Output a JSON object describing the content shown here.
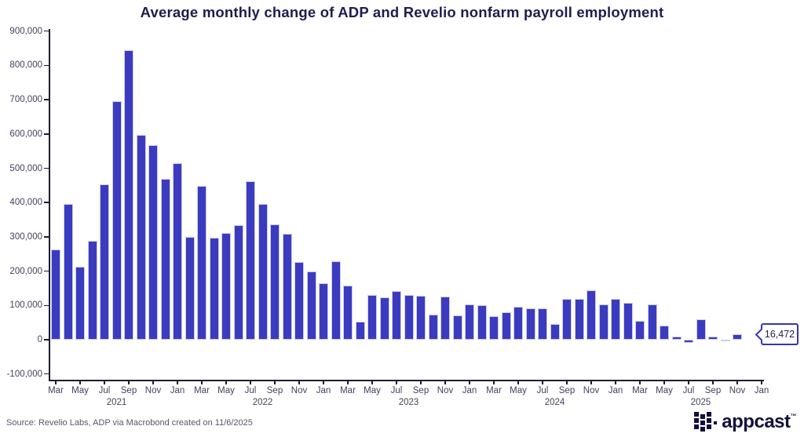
{
  "title": "Average monthly change of ADP and Revelio nonfarm payroll employment",
  "source_note": "Source: Revelio Labs, ADP via Macrobond created on 11/6/2025",
  "logo": {
    "text": "appcast",
    "trademark": "™",
    "icon": "appcast-squares-icon"
  },
  "colors": {
    "bar": "#3b3bc0",
    "bar_edge": "#cbcbef",
    "axis": "#1c1c33",
    "title_text": "#1d1d4f",
    "tick_text": "#42425f",
    "callout_border": "#3535ae"
  },
  "chart_data": {
    "type": "bar",
    "title": "Average monthly change of ADP and Revelio nonfarm payroll employment",
    "xlabel": "",
    "ylabel": "",
    "ylim": [
      -100000,
      900000
    ],
    "grid": false,
    "legend": "none",
    "y_ticks": [
      {
        "v": 900000,
        "label": "900,000"
      },
      {
        "v": 800000,
        "label": "800,000"
      },
      {
        "v": 700000,
        "label": "700,000"
      },
      {
        "v": 600000,
        "label": "600,000"
      },
      {
        "v": 500000,
        "label": "500,000"
      },
      {
        "v": 400000,
        "label": "400,000"
      },
      {
        "v": 300000,
        "label": "300,000"
      },
      {
        "v": 200000,
        "label": "200,000"
      },
      {
        "v": 100000,
        "label": "100,000"
      },
      {
        "v": 0,
        "label": "0"
      },
      {
        "v": -100000,
        "label": "-100,000"
      }
    ],
    "x_tick_every_n_months": 2,
    "final_tick_label": "Jan",
    "year_labels": [
      {
        "label": "2021",
        "month_index": 5
      },
      {
        "label": "2022",
        "month_index": 17
      },
      {
        "label": "2023",
        "month_index": 29
      },
      {
        "label": "2024",
        "month_index": 41
      },
      {
        "label": "2025",
        "month_index": 53
      }
    ],
    "categories": [
      "Mar 2021",
      "Apr 2021",
      "May 2021",
      "Jun 2021",
      "Jul 2021",
      "Aug 2021",
      "Sep 2021",
      "Oct 2021",
      "Nov 2021",
      "Dec 2021",
      "Jan 2022",
      "Feb 2022",
      "Mar 2022",
      "Apr 2022",
      "May 2022",
      "Jun 2022",
      "Jul 2022",
      "Aug 2022",
      "Sep 2022",
      "Oct 2022",
      "Nov 2022",
      "Dec 2022",
      "Jan 2023",
      "Feb 2023",
      "Mar 2023",
      "Apr 2023",
      "May 2023",
      "Jun 2023",
      "Jul 2023",
      "Aug 2023",
      "Sep 2023",
      "Oct 2023",
      "Nov 2023",
      "Dec 2023",
      "Jan 2024",
      "Feb 2024",
      "Mar 2024",
      "Apr 2024",
      "May 2024",
      "Jun 2024",
      "Jul 2024",
      "Aug 2024",
      "Sep 2024",
      "Oct 2024",
      "Nov 2024",
      "Dec 2024",
      "Jan 2025",
      "Feb 2025",
      "Mar 2025",
      "Apr 2025",
      "May 2025",
      "Jun 2025",
      "Jul 2025",
      "Aug 2025",
      "Sep 2025",
      "Oct 2025",
      "Nov 2025"
    ],
    "values": [
      263000,
      396000,
      212000,
      288000,
      452000,
      696000,
      845000,
      598000,
      568000,
      468000,
      516000,
      300000,
      449000,
      297000,
      312000,
      334000,
      462000,
      395000,
      336000,
      309000,
      227000,
      200000,
      165000,
      228000,
      159000,
      52000,
      130000,
      123000,
      142000,
      130000,
      128000,
      74000,
      125000,
      72000,
      104000,
      100000,
      68000,
      81000,
      96000,
      92000,
      92000,
      46000,
      118000,
      118000,
      144000,
      103000,
      118000,
      108000,
      55000,
      102000,
      41000,
      10000,
      -10000,
      60000,
      9000,
      -3000,
      16472
    ],
    "annotation": {
      "label": "16,472",
      "target": "Nov 2025"
    }
  }
}
